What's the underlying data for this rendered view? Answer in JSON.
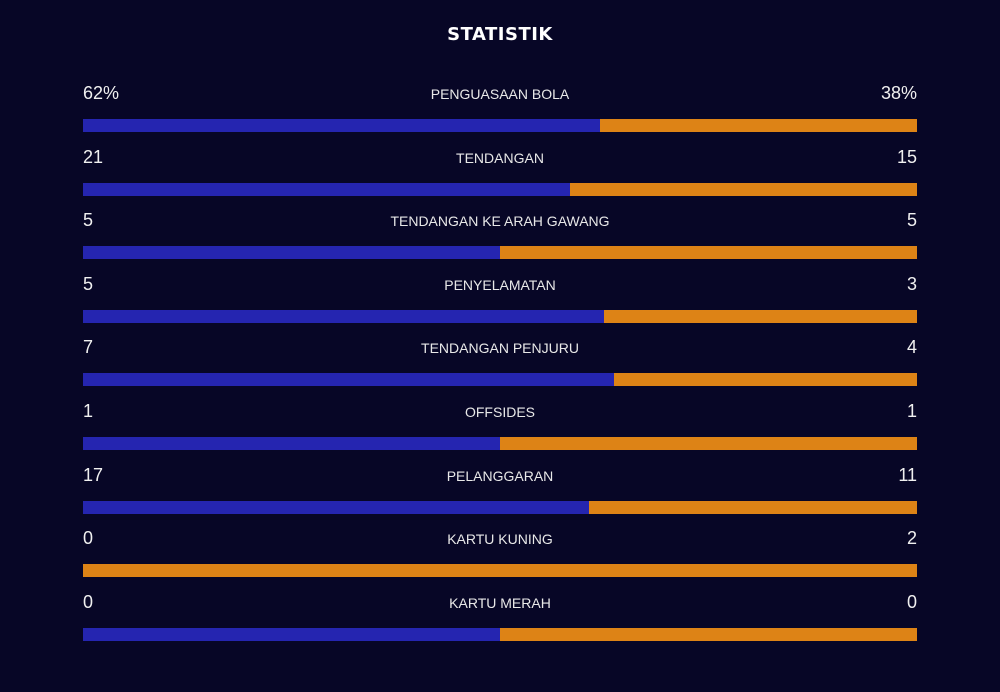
{
  "title": "STATISTIK",
  "colors": {
    "home": "#2525b0",
    "away": "#dd8316",
    "background": "#070626"
  },
  "stats": [
    {
      "label": "PENGUASAAN BOLA",
      "home": "62%",
      "away": "38%",
      "home_value": 62,
      "away_value": 38
    },
    {
      "label": "TENDANGAN",
      "home": "21",
      "away": "15",
      "home_value": 21,
      "away_value": 15
    },
    {
      "label": "TENDANGAN KE ARAH GAWANG",
      "home": "5",
      "away": "5",
      "home_value": 5,
      "away_value": 5
    },
    {
      "label": "PENYELAMATAN",
      "home": "5",
      "away": "3",
      "home_value": 5,
      "away_value": 3
    },
    {
      "label": "TENDANGAN PENJURU",
      "home": "7",
      "away": "4",
      "home_value": 7,
      "away_value": 4
    },
    {
      "label": "OFFSIDES",
      "home": "1",
      "away": "1",
      "home_value": 1,
      "away_value": 1
    },
    {
      "label": "PELANGGARAN",
      "home": "17",
      "away": "11",
      "home_value": 17,
      "away_value": 11
    },
    {
      "label": "KARTU KUNING",
      "home": "0",
      "away": "2",
      "home_value": 0,
      "away_value": 2
    },
    {
      "label": "KARTU MERAH",
      "home": "0",
      "away": "0",
      "home_value": 0,
      "away_value": 0
    }
  ]
}
